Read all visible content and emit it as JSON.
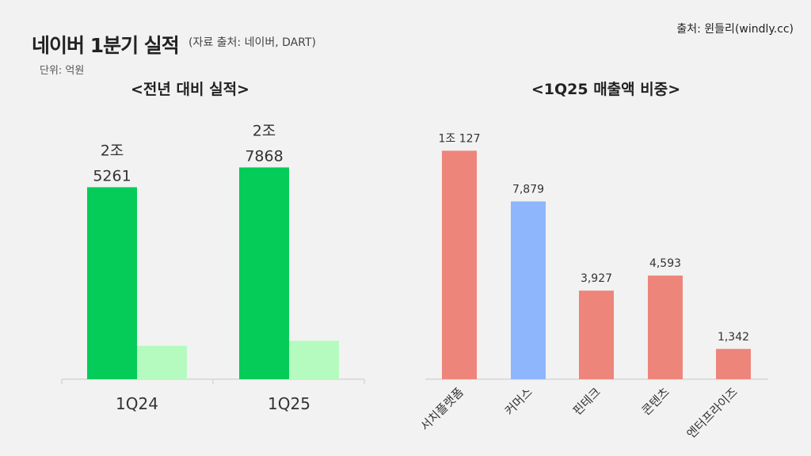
{
  "header": {
    "title": "네이버 1분기 실적",
    "source_note": "(자료 출처: 네이버, DART)",
    "unit": "단위: 억원",
    "credit": "출처: 윈들리(windly.cc)"
  },
  "colors": {
    "revenue": "#05cc58",
    "secondary": "#b5fbbf",
    "segment_default": "#ee857a",
    "segment_highlight": "#8db6fd"
  },
  "chart_data": [
    {
      "type": "bar",
      "title": "<전년 대비 실적>",
      "categories": [
        "1Q24",
        "1Q25"
      ],
      "series": [
        {
          "values": [
            25261,
            27868
          ]
        },
        {
          "values": [
            4393,
            5053
          ]
        }
      ],
      "data_labels": [
        {
          "line1": "2조",
          "line2": "5261"
        },
        {
          "line1": "2조",
          "line2": "7868"
        }
      ],
      "ylim": [
        0,
        30000
      ]
    },
    {
      "type": "bar",
      "title": "<1Q25 매출액 비중>",
      "categories": [
        "서치플랫폼",
        "커머스",
        "핀테크",
        "콘텐츠",
        "엔터프라이즈"
      ],
      "values": [
        10127,
        7879,
        3927,
        4593,
        1342
      ],
      "labels": [
        "1조 127",
        "7,879",
        "3,927",
        "4,593",
        "1,342"
      ],
      "highlight": "커머스",
      "ylim": [
        0,
        12000
      ]
    }
  ]
}
